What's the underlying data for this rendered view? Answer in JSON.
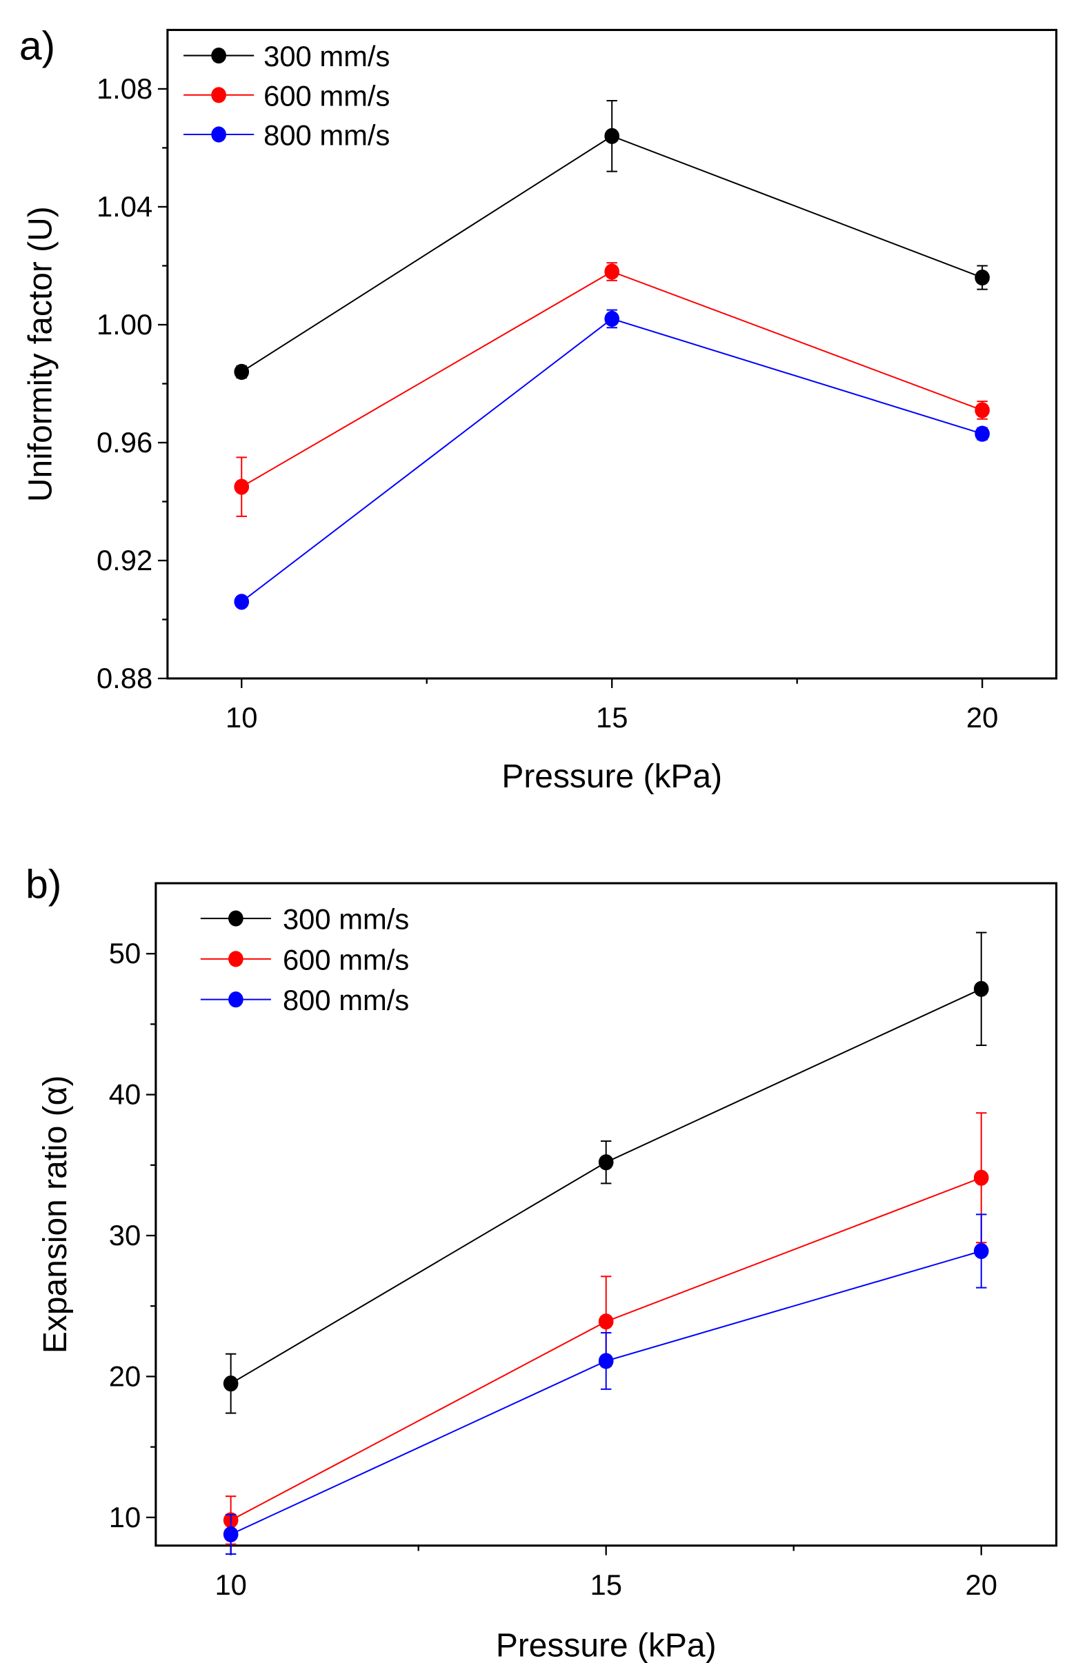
{
  "chart_data": [
    {
      "type": "line",
      "panel_label": "a)",
      "title": "",
      "xlabel": "Pressure (kPa)",
      "ylabel": "Uniformity factor (U)",
      "xlim": [
        9,
        21
      ],
      "ylim": [
        0.88,
        1.1
      ],
      "xticks": [
        10,
        15,
        20
      ],
      "xtick_labels": [
        "10",
        "15",
        "20"
      ],
      "x_minor_ticks": [
        12.5,
        17.5
      ],
      "yticks": [
        0.88,
        0.92,
        0.96,
        1.0,
        1.04,
        1.08
      ],
      "ytick_labels": [
        "0.88",
        "0.92",
        "0.96",
        "1.00",
        "1.04",
        "1.08"
      ],
      "y_minor_ticks": [
        0.9,
        0.94,
        0.98,
        1.02,
        1.06
      ],
      "grid": false,
      "legend_position": "top-left",
      "x": [
        10,
        15,
        20
      ],
      "series": [
        {
          "name": "300 mm/s",
          "color": "#000000",
          "values": [
            0.984,
            1.064,
            1.016
          ],
          "errors": [
            0.002,
            0.012,
            0.004
          ]
        },
        {
          "name": "600 mm/s",
          "color": "#ff0000",
          "values": [
            0.945,
            1.018,
            0.971
          ],
          "errors": [
            0.01,
            0.003,
            0.003
          ]
        },
        {
          "name": "800 mm/s",
          "color": "#0000ff",
          "values": [
            0.906,
            1.002,
            0.963
          ],
          "errors": [
            0.001,
            0.003,
            0.002
          ]
        }
      ]
    },
    {
      "type": "line",
      "panel_label": "b)",
      "title": "",
      "xlabel": "Pressure (kPa)",
      "ylabel": "Expansion ratio (α)",
      "xlim": [
        9,
        21
      ],
      "ylim": [
        8,
        55
      ],
      "xticks": [
        10,
        15,
        20
      ],
      "xtick_labels": [
        "10",
        "15",
        "20"
      ],
      "x_minor_ticks": [
        12.5,
        17.5
      ],
      "yticks": [
        10,
        20,
        30,
        40,
        50
      ],
      "ytick_labels": [
        "10",
        "20",
        "30",
        "40",
        "50"
      ],
      "y_minor_ticks": [
        15,
        25,
        35,
        45
      ],
      "grid": false,
      "legend_position": "top-left",
      "x": [
        10,
        15,
        20
      ],
      "series": [
        {
          "name": "300 mm/s",
          "color": "#000000",
          "values": [
            19.5,
            35.2,
            47.5
          ],
          "errors": [
            2.1,
            1.5,
            4.0
          ]
        },
        {
          "name": "600 mm/s",
          "color": "#ff0000",
          "values": [
            9.8,
            23.9,
            34.1
          ],
          "errors": [
            1.7,
            3.2,
            4.6
          ]
        },
        {
          "name": "800 mm/s",
          "color": "#0000ff",
          "values": [
            8.8,
            21.1,
            28.9
          ],
          "errors": [
            1.4,
            2.0,
            2.6
          ]
        }
      ]
    }
  ]
}
